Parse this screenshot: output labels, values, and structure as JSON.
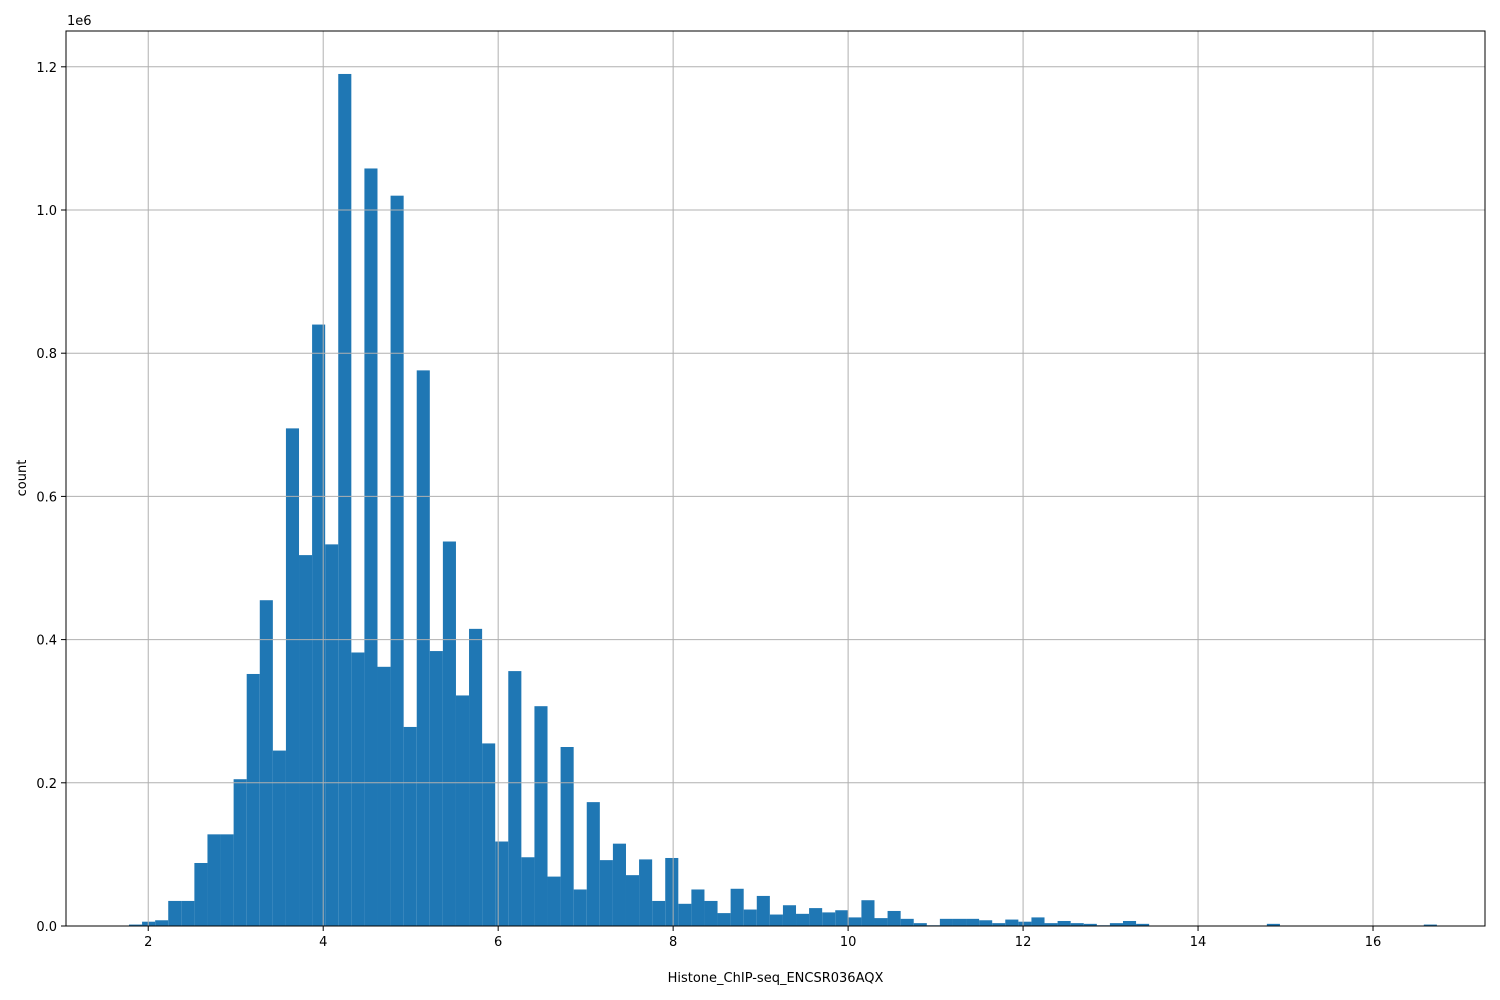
{
  "chart_data": {
    "type": "bar",
    "title": "",
    "xlabel": "Histone_ChIP-seq_ENCSR036AQX",
    "ylabel": "count",
    "y_offset_label": "1e6",
    "xlim": [
      1.06,
      17.28
    ],
    "ylim": [
      0,
      1.25
    ],
    "y_unit_multiplier": 1000000,
    "grid": true,
    "bar_color": "#1f77b4",
    "grid_color": "#b0b0b0",
    "bin_width": 0.1495,
    "x_ticks": [
      2,
      4,
      6,
      8,
      10,
      12,
      14,
      16
    ],
    "x_tick_labels": [
      "2",
      "4",
      "6",
      "8",
      "10",
      "12",
      "14",
      "16"
    ],
    "y_ticks": [
      0.0,
      0.2,
      0.4,
      0.6,
      0.8,
      1.0,
      1.2
    ],
    "y_tick_labels": [
      "0.0",
      "0.2",
      "0.4",
      "0.6",
      "0.8",
      "1.0",
      "1.2"
    ],
    "bin_starts": [
      1.78,
      1.9295,
      2.079,
      2.2285,
      2.378,
      2.5275,
      2.677,
      2.8265,
      2.976,
      3.1255,
      3.275,
      3.4245,
      3.574,
      3.7235,
      3.873,
      4.0225,
      4.172,
      4.3215,
      4.471,
      4.6205,
      4.77,
      4.9195,
      5.069,
      5.2185,
      5.368,
      5.5175,
      5.667,
      5.8165,
      5.966,
      6.1155,
      6.265,
      6.4145,
      6.564,
      6.7135,
      6.863,
      7.0125,
      7.162,
      7.3115,
      7.461,
      7.6105,
      7.76,
      7.9095,
      8.059,
      8.2085,
      8.358,
      8.5075,
      8.657,
      8.8065,
      8.956,
      9.1055,
      9.255,
      9.4045,
      9.554,
      9.7035,
      9.853,
      10.0025,
      10.152,
      10.3015,
      10.451,
      10.6005,
      10.75,
      10.8995,
      11.049,
      11.1985,
      11.348,
      11.4975,
      11.647,
      11.7965,
      11.946,
      12.0955,
      12.245,
      12.3945,
      12.544,
      12.6935,
      12.843,
      12.9925,
      13.142,
      13.2915,
      14.7865,
      16.5805
    ],
    "values": [
      0.002,
      0.006,
      0.008,
      0.035,
      0.035,
      0.088,
      0.128,
      0.128,
      0.205,
      0.352,
      0.455,
      0.245,
      0.695,
      0.518,
      0.84,
      0.533,
      1.19,
      0.382,
      1.058,
      0.362,
      1.02,
      0.278,
      0.776,
      0.384,
      0.537,
      0.322,
      0.415,
      0.255,
      0.118,
      0.356,
      0.096,
      0.307,
      0.069,
      0.25,
      0.051,
      0.173,
      0.092,
      0.115,
      0.071,
      0.093,
      0.035,
      0.095,
      0.031,
      0.051,
      0.035,
      0.018,
      0.052,
      0.023,
      0.042,
      0.016,
      0.029,
      0.017,
      0.025,
      0.019,
      0.022,
      0.012,
      0.036,
      0.011,
      0.021,
      0.01,
      0.004,
      0.001,
      0.01,
      0.01,
      0.01,
      0.008,
      0.004,
      0.009,
      0.006,
      0.012,
      0.004,
      0.007,
      0.004,
      0.003,
      0.001,
      0.004,
      0.007,
      0.003,
      0.003,
      0.002
    ]
  }
}
